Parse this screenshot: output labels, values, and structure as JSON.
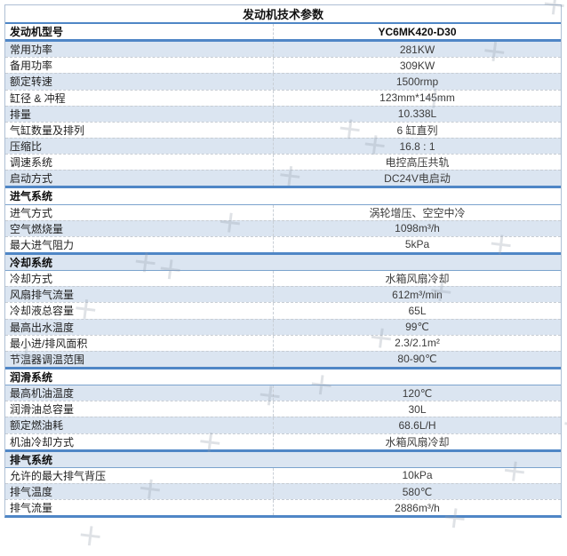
{
  "table": {
    "title": "发动机技术参数",
    "rows": [
      {
        "type": "model",
        "label": "发动机型号",
        "value": "YC6MK420-D30",
        "shaded": false
      },
      {
        "type": "data",
        "label": "常用功率",
        "value": "281KW",
        "shaded": true
      },
      {
        "type": "data",
        "label": "备用功率",
        "value": "309KW",
        "shaded": false
      },
      {
        "type": "data",
        "label": "额定转速",
        "value": "1500rmp",
        "shaded": true
      },
      {
        "type": "data",
        "label": "缸径 & 冲程",
        "value": "123mm*145mm",
        "shaded": false
      },
      {
        "type": "data",
        "label": "排量",
        "value": "10.338L",
        "shaded": true
      },
      {
        "type": "data",
        "label": "气缸数量及排列",
        "value": "6 缸直列",
        "shaded": false
      },
      {
        "type": "data",
        "label": "压缩比",
        "value": "16.8 : 1",
        "shaded": true
      },
      {
        "type": "data",
        "label": "调速系统",
        "value": "电控高压共轨",
        "shaded": false
      },
      {
        "type": "data",
        "label": "启动方式",
        "value": "DC24V电启动",
        "shaded": true
      },
      {
        "type": "section",
        "label": "进气系统",
        "value": "",
        "shaded": false
      },
      {
        "type": "data",
        "label": "进气方式",
        "value": "涡轮增压、空空中冷",
        "shaded": false
      },
      {
        "type": "data",
        "label": "空气燃烧量",
        "value": "1098m³/h",
        "shaded": true
      },
      {
        "type": "data",
        "label": "最大进气阻力",
        "value": "5kPa",
        "shaded": false
      },
      {
        "type": "section",
        "label": "冷却系统",
        "value": "",
        "shaded": true
      },
      {
        "type": "data",
        "label": "冷却方式",
        "value": "水箱风扇冷却",
        "shaded": false
      },
      {
        "type": "data",
        "label": "风扇排气流量",
        "value": "612m³/min",
        "shaded": true
      },
      {
        "type": "data",
        "label": "冷却液总容量",
        "value": "65L",
        "shaded": false
      },
      {
        "type": "data",
        "label": "最高出水温度",
        "value": "99℃",
        "shaded": true
      },
      {
        "type": "data",
        "label": "最小进/排风面积",
        "value": "2.3/2.1m²",
        "shaded": false
      },
      {
        "type": "data",
        "label": "节温器调温范围",
        "value": "80-90℃",
        "shaded": true
      },
      {
        "type": "section",
        "label": "润滑系统",
        "value": "",
        "shaded": false
      },
      {
        "type": "data",
        "label": "最高机油温度",
        "value": "120℃",
        "shaded": true
      },
      {
        "type": "data",
        "label": "润滑油总容量",
        "value": "30L",
        "shaded": false
      },
      {
        "type": "data",
        "label": "额定燃油耗",
        "value": "68.6L/H",
        "shaded": true
      },
      {
        "type": "data",
        "label": "机油冷却方式",
        "value": "水箱风扇冷却",
        "shaded": false
      },
      {
        "type": "section",
        "label": "排气系统",
        "value": "",
        "shaded": true
      },
      {
        "type": "data",
        "label": "允许的最大排气背压",
        "value": "10kPa",
        "shaded": false
      },
      {
        "type": "data",
        "label": "排气温度",
        "value": "580℃",
        "shaded": true
      },
      {
        "type": "data",
        "label": "排气流量",
        "value": "2886m³/h",
        "shaded": false
      }
    ]
  },
  "colors": {
    "accent_blue_line": "#4f86c6",
    "shaded_row_bg": "#dbe5f1",
    "thin_blue_line": "#7ba3cd",
    "dashed_separator": "#c6ccd3",
    "outer_border": "#aebfd4",
    "text": "#333333"
  },
  "watermark": {
    "line": "✕ ✕ ✕ ✕"
  }
}
